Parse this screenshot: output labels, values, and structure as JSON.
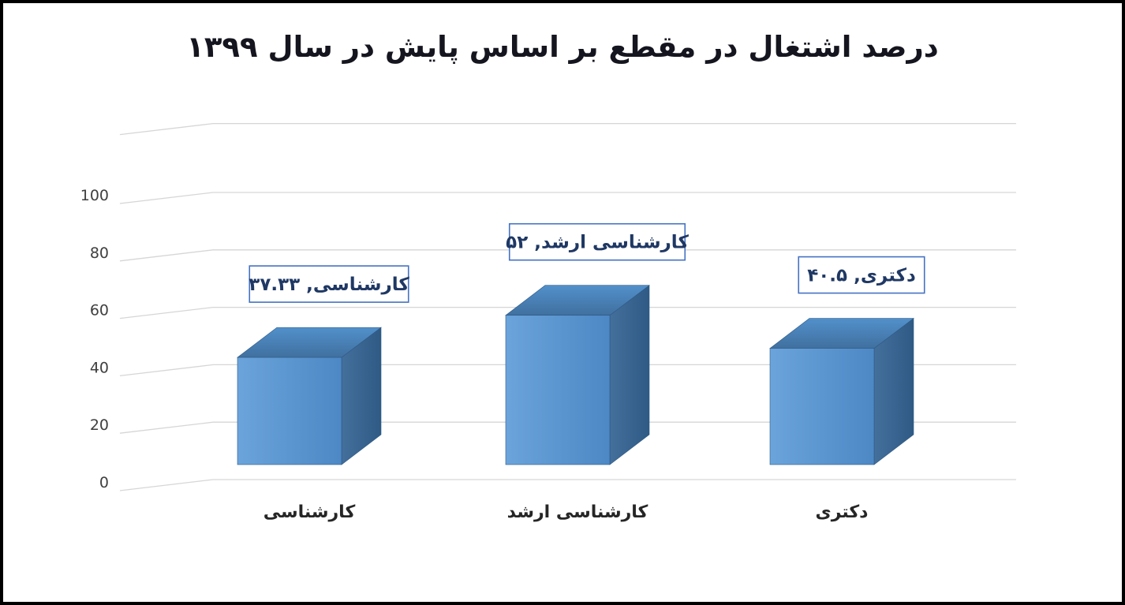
{
  "chart_data": {
    "type": "bar",
    "style": "3d-column",
    "title": "درصد اشتغال در مقطع بر اساس پایش در سال ۱۳۹۹",
    "categories": [
      "کارشناسی",
      "کارشناسی ارشد",
      "دکتری"
    ],
    "values": [
      37.33,
      52,
      40.5
    ],
    "data_labels": [
      "کارشناسی, ۳۷.۳۳",
      "کارشناسی ارشد, ۵۲",
      "دکتری, ۴۰.۵"
    ],
    "y_ticks": [
      "0",
      "20",
      "40",
      "60",
      "80",
      "100"
    ],
    "y_tick_values": [
      0,
      20,
      40,
      60,
      80,
      100
    ],
    "ylim": [
      0,
      100
    ],
    "xlabel": "",
    "ylabel": "",
    "legend": "none",
    "grid": true,
    "colors": {
      "bar_front": [
        "#6ba4db",
        "#4d88c5"
      ],
      "bar_top": [
        "#5290cb",
        "#40709f"
      ],
      "bar_side": [
        "#446f9c",
        "#2f5a86"
      ],
      "bar_outline": "#2e5a85",
      "label_box_fill": "#ffffff",
      "label_box_border": "#4472c4",
      "label_text": "#1f3864",
      "title": "#15151f",
      "gridline": "#d6d6d6",
      "axis_text": "#3f3f3f",
      "category_text": "#262626",
      "background": "#ffffff",
      "frame_border": "#000000"
    }
  }
}
